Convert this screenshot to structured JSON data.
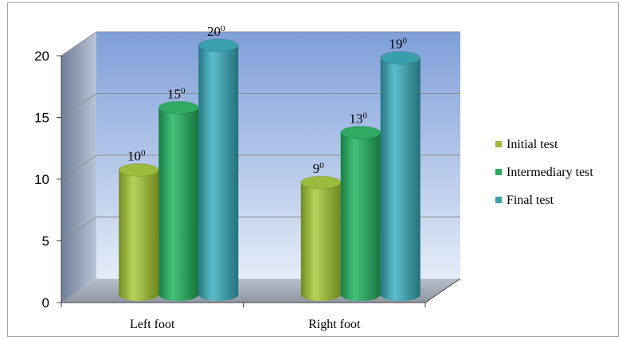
{
  "chart_data": {
    "type": "bar",
    "style": "3d-cylinder",
    "categories": [
      "Left foot",
      "Right foot"
    ],
    "series": [
      {
        "name": "Initial test",
        "values": [
          10,
          9
        ],
        "labels": [
          "10",
          "9"
        ],
        "color": "#9bbb3c"
      },
      {
        "name": "Intermediary test",
        "values": [
          15,
          13
        ],
        "labels": [
          "15",
          "13"
        ],
        "color": "#2eaa62"
      },
      {
        "name": "Final test",
        "values": [
          20,
          19
        ],
        "labels": [
          "20",
          "19"
        ],
        "color": "#3a9fac"
      }
    ],
    "label_suffix": "0",
    "yticks": [
      "0",
      "5",
      "10",
      "15",
      "20"
    ],
    "ylim": [
      0,
      20
    ],
    "grid": true,
    "legend_position": "right"
  }
}
